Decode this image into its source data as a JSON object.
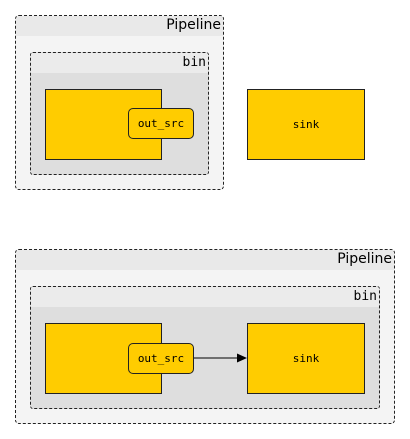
{
  "colors": {
    "element_fill": "#ffcc00",
    "pipeline_fill": "#f4f4f4",
    "bin_fill": "#dedede",
    "stroke": "#222222"
  },
  "top_diagram": {
    "pipeline_label": "Pipeline",
    "bin_label": "bin",
    "pad_label": "out_src",
    "sink_label": "sink"
  },
  "bottom_diagram": {
    "pipeline_label": "Pipeline",
    "bin_label": "bin",
    "pad_label": "out_src",
    "sink_label": "sink"
  }
}
